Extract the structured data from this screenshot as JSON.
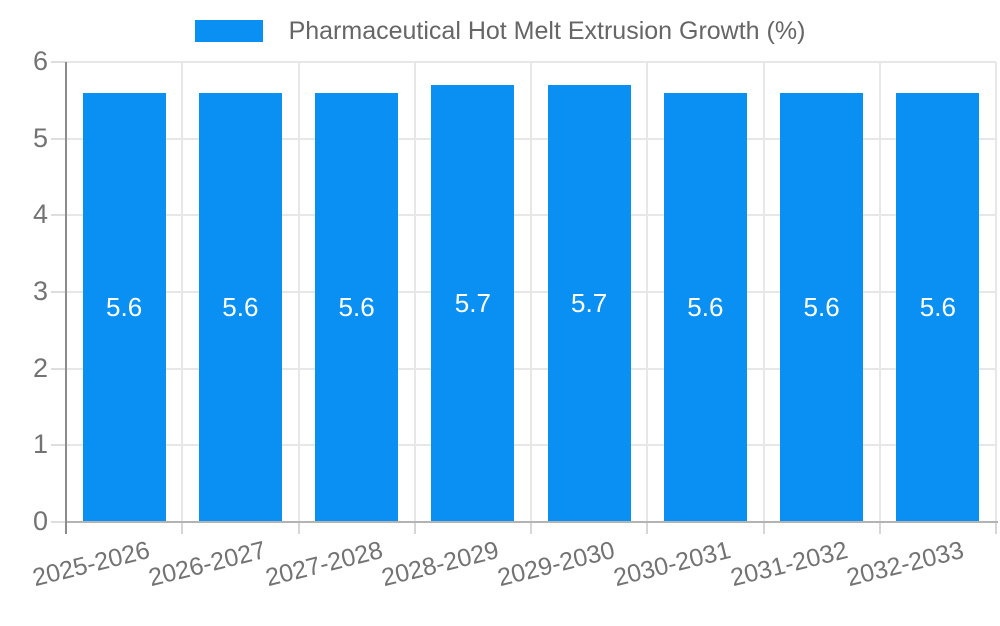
{
  "page": {
    "background": "#ffffff"
  },
  "legend": {
    "label": "Pharmaceutical Hot Melt Extrusion Growth (%)",
    "swatch_color": "#0a8ff2"
  },
  "colors": {
    "bar": "#0a8ff2",
    "bar_label": "#ffffff",
    "grid": "#e7e7e7",
    "axis_y_line": "#8c8c8c",
    "axis_x_line": "#b3b3b3",
    "tick_label": "#737373",
    "legend_text": "#666666"
  },
  "chart_data": {
    "type": "bar",
    "title": "Pharmaceutical Hot Melt Extrusion Growth (%)",
    "categories": [
      "2025-2026",
      "2026-2027",
      "2027-2028",
      "2028-2029",
      "2029-2030",
      "2030-2031",
      "2031-2032",
      "2032-2033"
    ],
    "values": [
      5.6,
      5.6,
      5.6,
      5.7,
      5.7,
      5.6,
      5.6,
      5.6
    ],
    "bar_labels": [
      "5.6",
      "5.6",
      "5.6",
      "5.7",
      "5.7",
      "5.6",
      "5.6",
      "5.6"
    ],
    "xlabel": "",
    "ylabel": "",
    "ylim": [
      0,
      6
    ],
    "yticks": [
      0,
      1,
      2,
      3,
      4,
      5,
      6
    ],
    "grid": true,
    "legend_position": "top",
    "bar_color": "#0a8ff2",
    "bar_label_color": "#ffffff"
  }
}
